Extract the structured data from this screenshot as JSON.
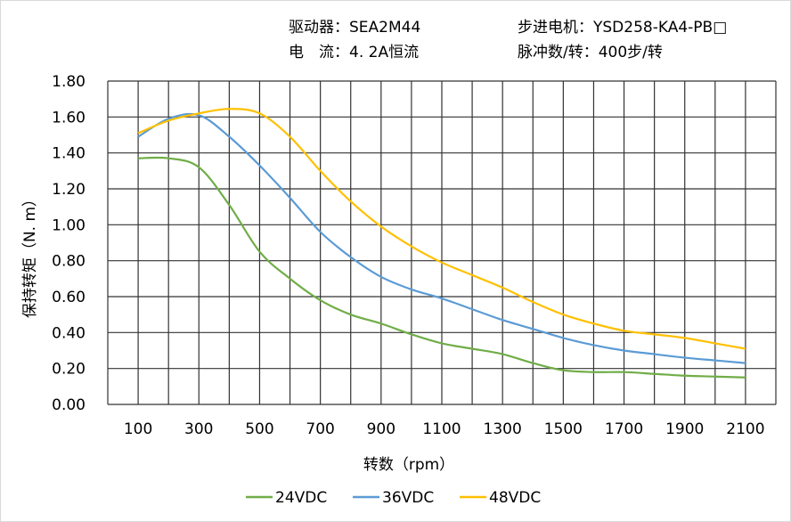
{
  "header": {
    "driver": "驱动器：SEA2M44",
    "current": "电　流：4. 2A恒流",
    "motor": "步进电机：YSD258-KA4-PB□",
    "pulses": "脉冲数/转：400步/转"
  },
  "chart_data": {
    "type": "line",
    "title": "",
    "xlabel": "转数（rpm）",
    "ylabel": "保持转矩（N. m）",
    "xlim": [
      0,
      2200
    ],
    "ylim": [
      0,
      1.8
    ],
    "grid": true,
    "legend": "bottom",
    "x_ticks": [
      "100",
      "300",
      "500",
      "700",
      "900",
      "1100",
      "1300",
      "1500",
      "1700",
      "1900",
      "2100"
    ],
    "y_ticks": [
      "0.00",
      "0.20",
      "0.40",
      "0.60",
      "0.80",
      "1.00",
      "1.20",
      "1.40",
      "1.60",
      "1.80"
    ],
    "x": [
      100,
      200,
      300,
      400,
      500,
      600,
      700,
      800,
      900,
      1000,
      1100,
      1200,
      1300,
      1400,
      1500,
      1600,
      1700,
      1800,
      1900,
      2000,
      2100
    ],
    "series": [
      {
        "name": "24VDC",
        "color": "#70ad47",
        "values": [
          1.37,
          1.37,
          1.32,
          1.11,
          0.85,
          0.7,
          0.58,
          0.5,
          0.45,
          0.39,
          0.34,
          0.31,
          0.28,
          0.23,
          0.19,
          0.18,
          0.18,
          0.17,
          0.16,
          0.155,
          0.15
        ]
      },
      {
        "name": "36VDC",
        "color": "#5b9bd5",
        "values": [
          1.49,
          1.59,
          1.61,
          1.49,
          1.33,
          1.15,
          0.96,
          0.82,
          0.71,
          0.64,
          0.59,
          0.53,
          0.47,
          0.42,
          0.37,
          0.33,
          0.3,
          0.28,
          0.26,
          0.245,
          0.23
        ]
      },
      {
        "name": "48VDC",
        "color": "#ffc000",
        "values": [
          1.51,
          1.58,
          1.62,
          1.645,
          1.62,
          1.49,
          1.3,
          1.13,
          0.99,
          0.88,
          0.79,
          0.72,
          0.65,
          0.57,
          0.5,
          0.45,
          0.41,
          0.39,
          0.37,
          0.34,
          0.31
        ]
      }
    ]
  }
}
